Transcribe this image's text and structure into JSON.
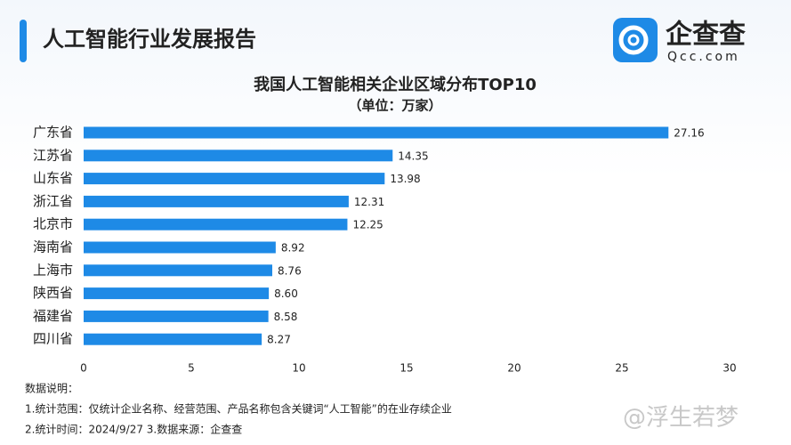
{
  "header": {
    "title": "人工智能行业发展报告"
  },
  "logo": {
    "name": "企查查",
    "domain": "Qcc.com"
  },
  "chart_data": {
    "type": "bar",
    "orientation": "horizontal",
    "title": "我国人工智能相关企业区域分布TOP10",
    "subtitle": "（单位：万家）",
    "categories": [
      "广东省",
      "江苏省",
      "山东省",
      "浙江省",
      "北京市",
      "海南省",
      "上海市",
      "陕西省",
      "福建省",
      "四川省"
    ],
    "values": [
      27.16,
      14.35,
      13.98,
      12.31,
      12.25,
      8.92,
      8.76,
      8.6,
      8.58,
      8.27
    ],
    "value_labels": [
      "27.16",
      "14.35",
      "13.98",
      "12.31",
      "12.25",
      "8.92",
      "8.76",
      "8.60",
      "8.58",
      "8.27"
    ],
    "color": "#1e8ae6",
    "xlim": [
      0,
      30
    ],
    "xticks": [
      0,
      5,
      10,
      15,
      20,
      25,
      30
    ],
    "grid": false
  },
  "notes": [
    "数据说明：",
    "1.统计范围：仅统计企业名称、经营范围、产品名称包含关键词“人工智能”的在业存续企业",
    "2.统计时间：2024/9/27    3.数据来源：企查查"
  ],
  "watermark": "@浮生若梦"
}
